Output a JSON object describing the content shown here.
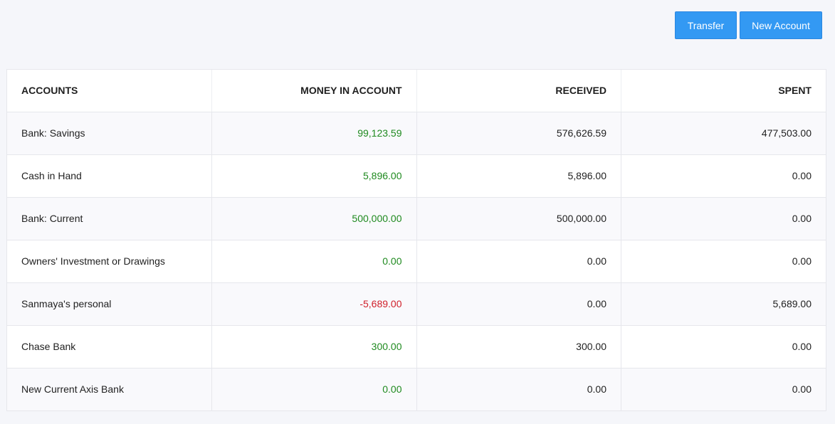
{
  "toolbar": {
    "transfer_label": "Transfer",
    "new_account_label": "New Account"
  },
  "table": {
    "headers": [
      "ACCOUNTS",
      "MONEY IN ACCOUNT",
      "RECEIVED",
      "SPENT"
    ],
    "rows": [
      {
        "account": "Bank: Savings",
        "money": "99,123.59",
        "money_status": "pos",
        "received": "576,626.59",
        "spent": "477,503.00"
      },
      {
        "account": "Cash in Hand",
        "money": "5,896.00",
        "money_status": "pos",
        "received": "5,896.00",
        "spent": "0.00"
      },
      {
        "account": "Bank: Current",
        "money": "500,000.00",
        "money_status": "pos",
        "received": "500,000.00",
        "spent": "0.00"
      },
      {
        "account": "Owners' Investment or Drawings",
        "money": "0.00",
        "money_status": "pos",
        "received": "0.00",
        "spent": "0.00"
      },
      {
        "account": "Sanmaya's personal",
        "money": "-5,689.00",
        "money_status": "neg",
        "received": "0.00",
        "spent": "5,689.00"
      },
      {
        "account": "Chase Bank",
        "money": "300.00",
        "money_status": "pos",
        "received": "300.00",
        "spent": "0.00"
      },
      {
        "account": "New Current Axis Bank",
        "money": "0.00",
        "money_status": "pos",
        "received": "0.00",
        "spent": "0.00"
      }
    ]
  },
  "colors": {
    "button": "#3399f3",
    "positive": "#1f8a1f",
    "negative": "#d0202a"
  }
}
